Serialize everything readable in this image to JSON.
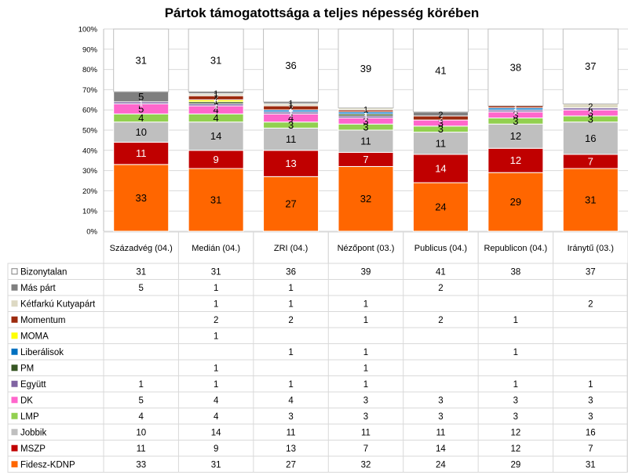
{
  "chart_data": {
    "type": "bar",
    "stacked": true,
    "title": "Pártok támogatottsága a teljes népesség körében",
    "categories": [
      "Századvég (04.)",
      "Medián (04.)",
      "ZRI (04.)",
      "Nézőpont (03.)",
      "Publicus (04.)",
      "Republicon (04.)",
      "Iránytű (03.)"
    ],
    "ylim": [
      0,
      100
    ],
    "y_ticks": [
      "0%",
      "10%",
      "20%",
      "30%",
      "40%",
      "50%",
      "60%",
      "70%",
      "80%",
      "90%",
      "100%"
    ],
    "grid": true,
    "legend": "data-table-left",
    "series": [
      {
        "name": "Fidesz-KDNP",
        "color": "#FF6600",
        "values": [
          33,
          31,
          27,
          32,
          24,
          29,
          31
        ]
      },
      {
        "name": "MSZP",
        "color": "#C00000",
        "values": [
          11,
          9,
          13,
          7,
          14,
          12,
          7
        ]
      },
      {
        "name": "Jobbik",
        "color": "#BFBFBF",
        "values": [
          10,
          14,
          11,
          11,
          11,
          12,
          16
        ]
      },
      {
        "name": "LMP",
        "color": "#92D050",
        "values": [
          4,
          4,
          3,
          3,
          3,
          3,
          3
        ]
      },
      {
        "name": "DK",
        "color": "#FF66CC",
        "values": [
          5,
          4,
          4,
          3,
          3,
          3,
          3
        ]
      },
      {
        "name": "Együtt",
        "color": "#8064A2",
        "values": [
          1,
          1,
          1,
          1,
          null,
          1,
          1
        ]
      },
      {
        "name": "PM",
        "color": "#375623",
        "values": [
          null,
          1,
          null,
          1,
          null,
          null,
          null
        ]
      },
      {
        "name": "Liberálisok",
        "color": "#0070C0",
        "values": [
          null,
          null,
          1,
          1,
          null,
          1,
          null
        ]
      },
      {
        "name": "MOMA",
        "color": "#FFFF00",
        "values": [
          null,
          1,
          null,
          null,
          null,
          null,
          null
        ]
      },
      {
        "name": "Momentum",
        "color": "#9C2A0E",
        "values": [
          null,
          2,
          2,
          1,
          2,
          1,
          null
        ]
      },
      {
        "name": "Kétfarkú Kutyapárt",
        "color": "#DDD9C3",
        "values": [
          null,
          1,
          1,
          1,
          null,
          null,
          2
        ]
      },
      {
        "name": "Más párt",
        "color": "#7F7F7F",
        "values": [
          5,
          1,
          1,
          null,
          2,
          null,
          null
        ]
      },
      {
        "name": "Bizonytalan",
        "color": "#FFFFFF",
        "values": [
          31,
          31,
          36,
          39,
          41,
          38,
          37
        ]
      }
    ]
  }
}
